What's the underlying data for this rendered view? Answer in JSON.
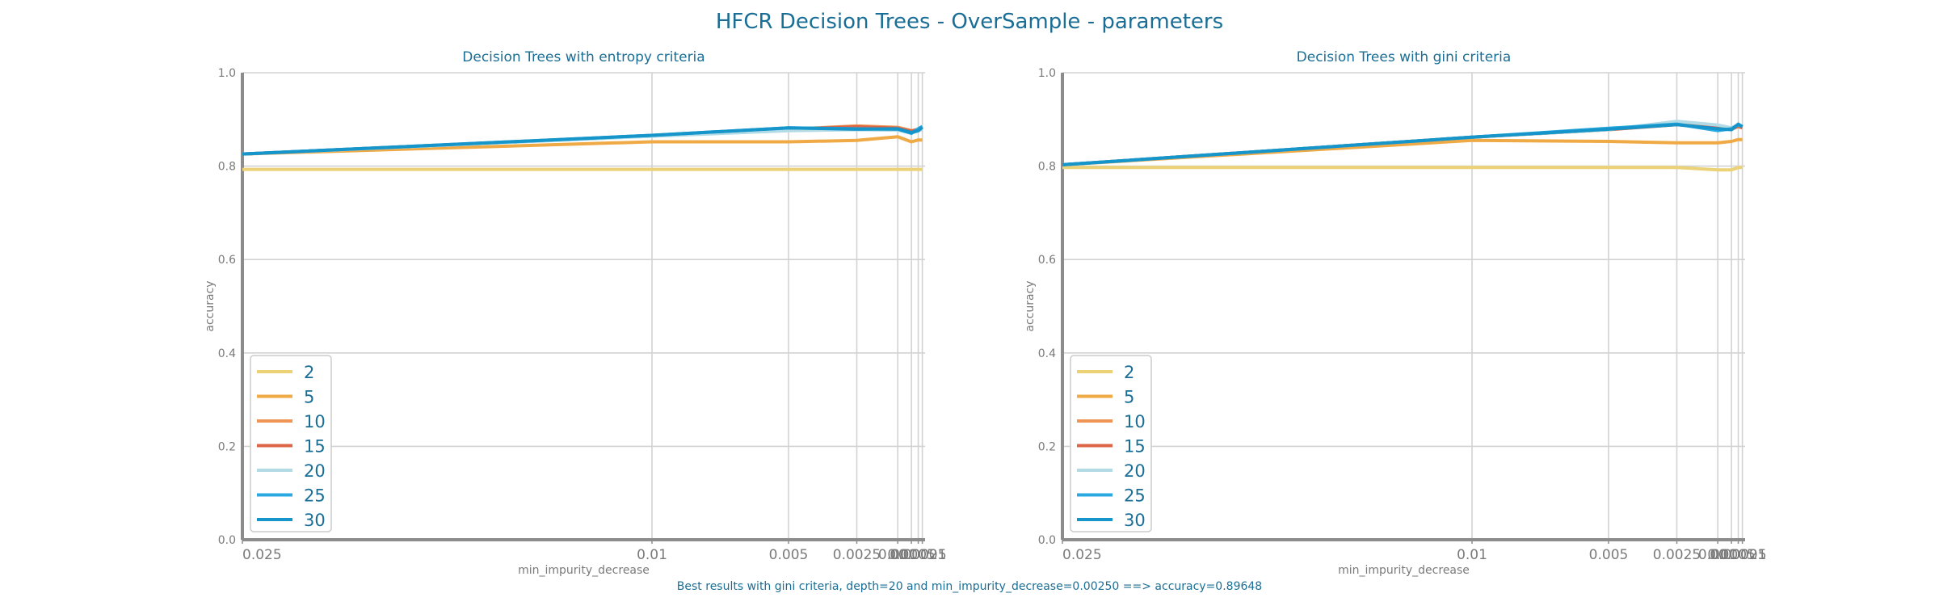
{
  "title": "HFCR Decision Trees - OverSample - parameters",
  "footer": "Best results with gini criteria, depth=20 and min_impurity_decrease=0.00250 ==> accuracy=0.89648",
  "colors": {
    "2": "#ecd276",
    "5": "#efaa45",
    "10": "#ee9455",
    "15": "#db6545",
    "20": "#b2dbe6",
    "25": "#2aa9e0",
    "30": "#1595c9"
  },
  "chart_data": [
    {
      "type": "line",
      "title": "Decision Trees with entropy criteria",
      "xlabel": "min_impurity_decrease",
      "ylabel": "accuracy",
      "ylim": [
        0,
        1
      ],
      "yticks": [
        "0.0",
        "0.2",
        "0.4",
        "0.6",
        "0.8",
        "1.0"
      ],
      "x": [
        0.025,
        0.01,
        0.005,
        0.0025,
        0.001,
        0.0005,
        0.00025,
        0.0001
      ],
      "xtick_labels": [
        "0.025",
        "0.01",
        "0.005",
        "0.0025",
        "0.001",
        "0.0005",
        "0.00025",
        "0.0001"
      ],
      "legend_position": "lower-left",
      "series": [
        {
          "name": "2",
          "values": [
            0.793,
            0.793,
            0.793,
            0.793,
            0.793,
            0.793,
            0.793,
            0.793
          ]
        },
        {
          "name": "5",
          "values": [
            0.826,
            0.852,
            0.852,
            0.855,
            0.863,
            0.852,
            0.856,
            0.856
          ]
        },
        {
          "name": "10",
          "values": [
            0.826,
            0.865,
            0.879,
            0.886,
            0.883,
            0.876,
            0.878,
            0.878
          ]
        },
        {
          "name": "15",
          "values": [
            0.826,
            0.865,
            0.879,
            0.884,
            0.881,
            0.875,
            0.879,
            0.88
          ]
        },
        {
          "name": "20",
          "values": [
            0.826,
            0.864,
            0.876,
            0.878,
            0.877,
            0.871,
            0.875,
            0.88
          ]
        },
        {
          "name": "25",
          "values": [
            0.826,
            0.866,
            0.882,
            0.88,
            0.879,
            0.87,
            0.88,
            0.885
          ]
        },
        {
          "name": "30",
          "values": [
            0.826,
            0.866,
            0.882,
            0.879,
            0.88,
            0.872,
            0.876,
            0.883
          ]
        }
      ]
    },
    {
      "type": "line",
      "title": "Decision Trees with gini criteria",
      "xlabel": "min_impurity_decrease",
      "ylabel": "accuracy",
      "ylim": [
        0,
        1
      ],
      "yticks": [
        "0.0",
        "0.2",
        "0.4",
        "0.6",
        "0.8",
        "1.0"
      ],
      "x": [
        0.025,
        0.01,
        0.005,
        0.0025,
        0.001,
        0.0005,
        0.00025,
        0.0001
      ],
      "xtick_labels": [
        "0.025",
        "0.01",
        "0.005",
        "0.0025",
        "0.001",
        "0.0005",
        "0.00025",
        "0.0001"
      ],
      "legend_position": "lower-left",
      "series": [
        {
          "name": "2",
          "values": [
            0.797,
            0.797,
            0.797,
            0.797,
            0.792,
            0.792,
            0.797,
            0.797
          ]
        },
        {
          "name": "5",
          "values": [
            0.803,
            0.855,
            0.853,
            0.85,
            0.85,
            0.853,
            0.857,
            0.857
          ]
        },
        {
          "name": "10",
          "values": [
            0.803,
            0.862,
            0.878,
            0.89,
            0.884,
            0.878,
            0.886,
            0.883
          ]
        },
        {
          "name": "15",
          "values": [
            0.803,
            0.862,
            0.878,
            0.889,
            0.882,
            0.88,
            0.885,
            0.882
          ]
        },
        {
          "name": "20",
          "values": [
            0.803,
            0.862,
            0.878,
            0.896,
            0.888,
            0.882,
            0.889,
            0.884
          ]
        },
        {
          "name": "25",
          "values": [
            0.803,
            0.862,
            0.881,
            0.89,
            0.876,
            0.88,
            0.889,
            0.885
          ]
        },
        {
          "name": "30",
          "values": [
            0.803,
            0.862,
            0.879,
            0.889,
            0.88,
            0.878,
            0.89,
            0.884
          ]
        }
      ]
    }
  ]
}
